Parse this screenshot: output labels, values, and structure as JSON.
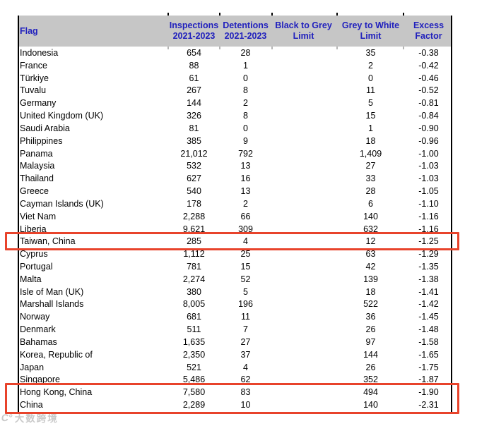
{
  "table": {
    "columns": [
      {
        "key": "flag",
        "label_line1": "Flag",
        "label_line2": ""
      },
      {
        "key": "inspections",
        "label_line1": "Inspections",
        "label_line2": "2021-2023"
      },
      {
        "key": "detentions",
        "label_line1": "Detentions",
        "label_line2": "2021-2023"
      },
      {
        "key": "black_to_grey_limit",
        "label_line1": "Black to Grey",
        "label_line2": "Limit"
      },
      {
        "key": "grey_to_white_limit",
        "label_line1": "Grey to White",
        "label_line2": "Limit"
      },
      {
        "key": "excess_factor",
        "label_line1": "Excess",
        "label_line2": "Factor"
      }
    ],
    "rows": [
      [
        "Indonesia",
        "654",
        "28",
        "",
        "35",
        "-0.38"
      ],
      [
        "France",
        "88",
        "1",
        "",
        "2",
        "-0.42"
      ],
      [
        "Türkiye",
        "61",
        "0",
        "",
        "0",
        "-0.46"
      ],
      [
        "Tuvalu",
        "267",
        "8",
        "",
        "11",
        "-0.52"
      ],
      [
        "Germany",
        "144",
        "2",
        "",
        "5",
        "-0.81"
      ],
      [
        "United Kingdom (UK)",
        "326",
        "8",
        "",
        "15",
        "-0.84"
      ],
      [
        "Saudi Arabia",
        "81",
        "0",
        "",
        "1",
        "-0.90"
      ],
      [
        "Philippines",
        "385",
        "9",
        "",
        "18",
        "-0.96"
      ],
      [
        "Panama",
        "21,012",
        "792",
        "",
        "1,409",
        "-1.00"
      ],
      [
        "Malaysia",
        "532",
        "13",
        "",
        "27",
        "-1.03"
      ],
      [
        "Thailand",
        "627",
        "16",
        "",
        "33",
        "-1.03"
      ],
      [
        "Greece",
        "540",
        "13",
        "",
        "28",
        "-1.05"
      ],
      [
        "Cayman Islands (UK)",
        "178",
        "2",
        "",
        "6",
        "-1.10"
      ],
      [
        "Viet Nam",
        "2,288",
        "66",
        "",
        "140",
        "-1.16"
      ],
      [
        "Liberia",
        "9,621",
        "309",
        "",
        "632",
        "-1.16"
      ],
      [
        "Taiwan, China",
        "285",
        "4",
        "",
        "12",
        "-1.25"
      ],
      [
        "Cyprus",
        "1,112",
        "25",
        "",
        "63",
        "-1.29"
      ],
      [
        "Portugal",
        "781",
        "15",
        "",
        "42",
        "-1.35"
      ],
      [
        "Malta",
        "2,274",
        "52",
        "",
        "139",
        "-1.38"
      ],
      [
        "Isle of Man (UK)",
        "380",
        "5",
        "",
        "18",
        "-1.41"
      ],
      [
        "Marshall Islands",
        "8,005",
        "196",
        "",
        "522",
        "-1.42"
      ],
      [
        "Norway",
        "681",
        "11",
        "",
        "36",
        "-1.45"
      ],
      [
        "Denmark",
        "511",
        "7",
        "",
        "26",
        "-1.48"
      ],
      [
        "Bahamas",
        "1,635",
        "27",
        "",
        "97",
        "-1.58"
      ],
      [
        "Korea, Republic of",
        "2,350",
        "37",
        "",
        "144",
        "-1.65"
      ],
      [
        "Japan",
        "521",
        "4",
        "",
        "26",
        "-1.75"
      ],
      [
        "Singapore",
        "5,486",
        "62",
        "",
        "352",
        "-1.87"
      ],
      [
        "Hong Kong, China",
        "7,580",
        "83",
        "",
        "494",
        "-1.90"
      ],
      [
        "China",
        "2,289",
        "10",
        "",
        "140",
        "-2.31"
      ]
    ]
  },
  "highlights": [
    {
      "id": "taiwan-china",
      "row_indices": [
        15
      ]
    },
    {
      "id": "hong-kong-china-and-china",
      "row_indices": [
        27,
        28
      ]
    }
  ],
  "watermark": {
    "logo": "C°",
    "text": "大数跨境"
  },
  "colors": {
    "header_bg": "#c6c6c6",
    "header_text": "#2121bd",
    "highlight_border": "#e8432b",
    "body_text": "#000000",
    "watermark_text": "#c9c9c9"
  }
}
